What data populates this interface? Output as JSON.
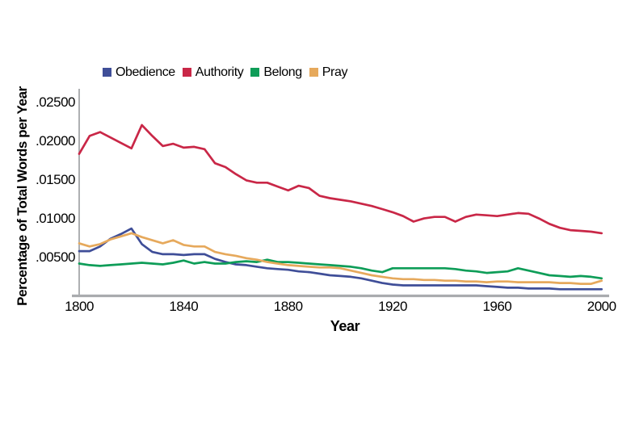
{
  "chart_data": {
    "type": "line",
    "title": "",
    "xlabel": "Year",
    "ylabel": "Percentage of Total Words per Year",
    "grid": false,
    "legend_position": "top",
    "xlim": [
      1800,
      2000
    ],
    "ylim": [
      0,
      0.025
    ],
    "yticks": [
      {
        "label": ".02500",
        "value": 0.025
      },
      {
        "label": ".02000",
        "value": 0.02
      },
      {
        "label": ".01500",
        "value": 0.015
      },
      {
        "label": ".01000",
        "value": 0.01
      },
      {
        "label": ".00500",
        "value": 0.005
      }
    ],
    "xticks": [
      1800,
      1840,
      1880,
      1920,
      1960,
      2000
    ],
    "x": [
      1800,
      1804,
      1808,
      1812,
      1816,
      1820,
      1824,
      1828,
      1832,
      1836,
      1840,
      1844,
      1848,
      1852,
      1856,
      1860,
      1864,
      1868,
      1872,
      1876,
      1880,
      1884,
      1888,
      1892,
      1896,
      1900,
      1904,
      1908,
      1912,
      1916,
      1920,
      1924,
      1928,
      1932,
      1936,
      1940,
      1944,
      1948,
      1952,
      1956,
      1960,
      1964,
      1968,
      1972,
      1976,
      1980,
      1984,
      1988,
      1992,
      1996,
      2000
    ],
    "series": [
      {
        "name": "Obedience",
        "color": "#3F4E98",
        "values": [
          0.0058,
          0.0058,
          0.0064,
          0.0074,
          0.008,
          0.0087,
          0.0067,
          0.0057,
          0.0054,
          0.0054,
          0.0053,
          0.0054,
          0.0054,
          0.0048,
          0.0044,
          0.0041,
          0.004,
          0.0038,
          0.0036,
          0.0035,
          0.0034,
          0.0032,
          0.0031,
          0.0029,
          0.0027,
          0.0026,
          0.0025,
          0.0023,
          0.002,
          0.0017,
          0.0015,
          0.0014,
          0.0014,
          0.0014,
          0.0014,
          0.0014,
          0.0014,
          0.0014,
          0.0014,
          0.0013,
          0.0012,
          0.0011,
          0.0011,
          0.001,
          0.001,
          0.001,
          0.0009,
          0.0009,
          0.0009,
          0.0009,
          0.0009
        ]
      },
      {
        "name": "Authority",
        "color": "#C92747",
        "values": [
          0.0183,
          0.0206,
          0.0211,
          0.0204,
          0.0197,
          0.019,
          0.022,
          0.0206,
          0.0193,
          0.0196,
          0.0191,
          0.0192,
          0.0189,
          0.0171,
          0.0166,
          0.0157,
          0.0149,
          0.0146,
          0.0146,
          0.0141,
          0.0136,
          0.0142,
          0.0139,
          0.0129,
          0.0126,
          0.0124,
          0.0122,
          0.0119,
          0.0116,
          0.0112,
          0.0108,
          0.0103,
          0.0096,
          0.01,
          0.0102,
          0.0102,
          0.0096,
          0.0102,
          0.0105,
          0.0104,
          0.0103,
          0.0105,
          0.0107,
          0.0106,
          0.01,
          0.0093,
          0.0088,
          0.0085,
          0.0084,
          0.0083,
          0.0081
        ]
      },
      {
        "name": "Belong",
        "color": "#0E9D58",
        "values": [
          0.0042,
          0.004,
          0.0039,
          0.004,
          0.0041,
          0.0042,
          0.0043,
          0.0042,
          0.0041,
          0.0043,
          0.0046,
          0.0042,
          0.0044,
          0.0042,
          0.0042,
          0.0044,
          0.0045,
          0.0044,
          0.0047,
          0.0044,
          0.0044,
          0.0043,
          0.0042,
          0.0041,
          0.004,
          0.0039,
          0.0038,
          0.0036,
          0.0033,
          0.0031,
          0.0036,
          0.0036,
          0.0036,
          0.0036,
          0.0036,
          0.0036,
          0.0035,
          0.0033,
          0.0032,
          0.003,
          0.0031,
          0.0032,
          0.0036,
          0.0033,
          0.003,
          0.0027,
          0.0026,
          0.0025,
          0.0026,
          0.0025,
          0.0023
        ]
      },
      {
        "name": "Pray",
        "color": "#E6A95C",
        "values": [
          0.0068,
          0.0064,
          0.0067,
          0.0073,
          0.0077,
          0.0081,
          0.0076,
          0.0072,
          0.0068,
          0.0072,
          0.0066,
          0.0064,
          0.0064,
          0.0057,
          0.0054,
          0.0052,
          0.0049,
          0.0047,
          0.0044,
          0.0042,
          0.004,
          0.0039,
          0.0038,
          0.0037,
          0.0037,
          0.0036,
          0.0033,
          0.003,
          0.0027,
          0.0025,
          0.0023,
          0.0022,
          0.0022,
          0.0021,
          0.0021,
          0.002,
          0.002,
          0.0019,
          0.0019,
          0.0018,
          0.0019,
          0.0019,
          0.0018,
          0.0018,
          0.0018,
          0.0018,
          0.0017,
          0.0017,
          0.0016,
          0.0016,
          0.002
        ]
      }
    ],
    "axis_colors": {
      "y_axis_line": "#A0A2A5",
      "x_axis_line": "#A9ABAE"
    }
  }
}
